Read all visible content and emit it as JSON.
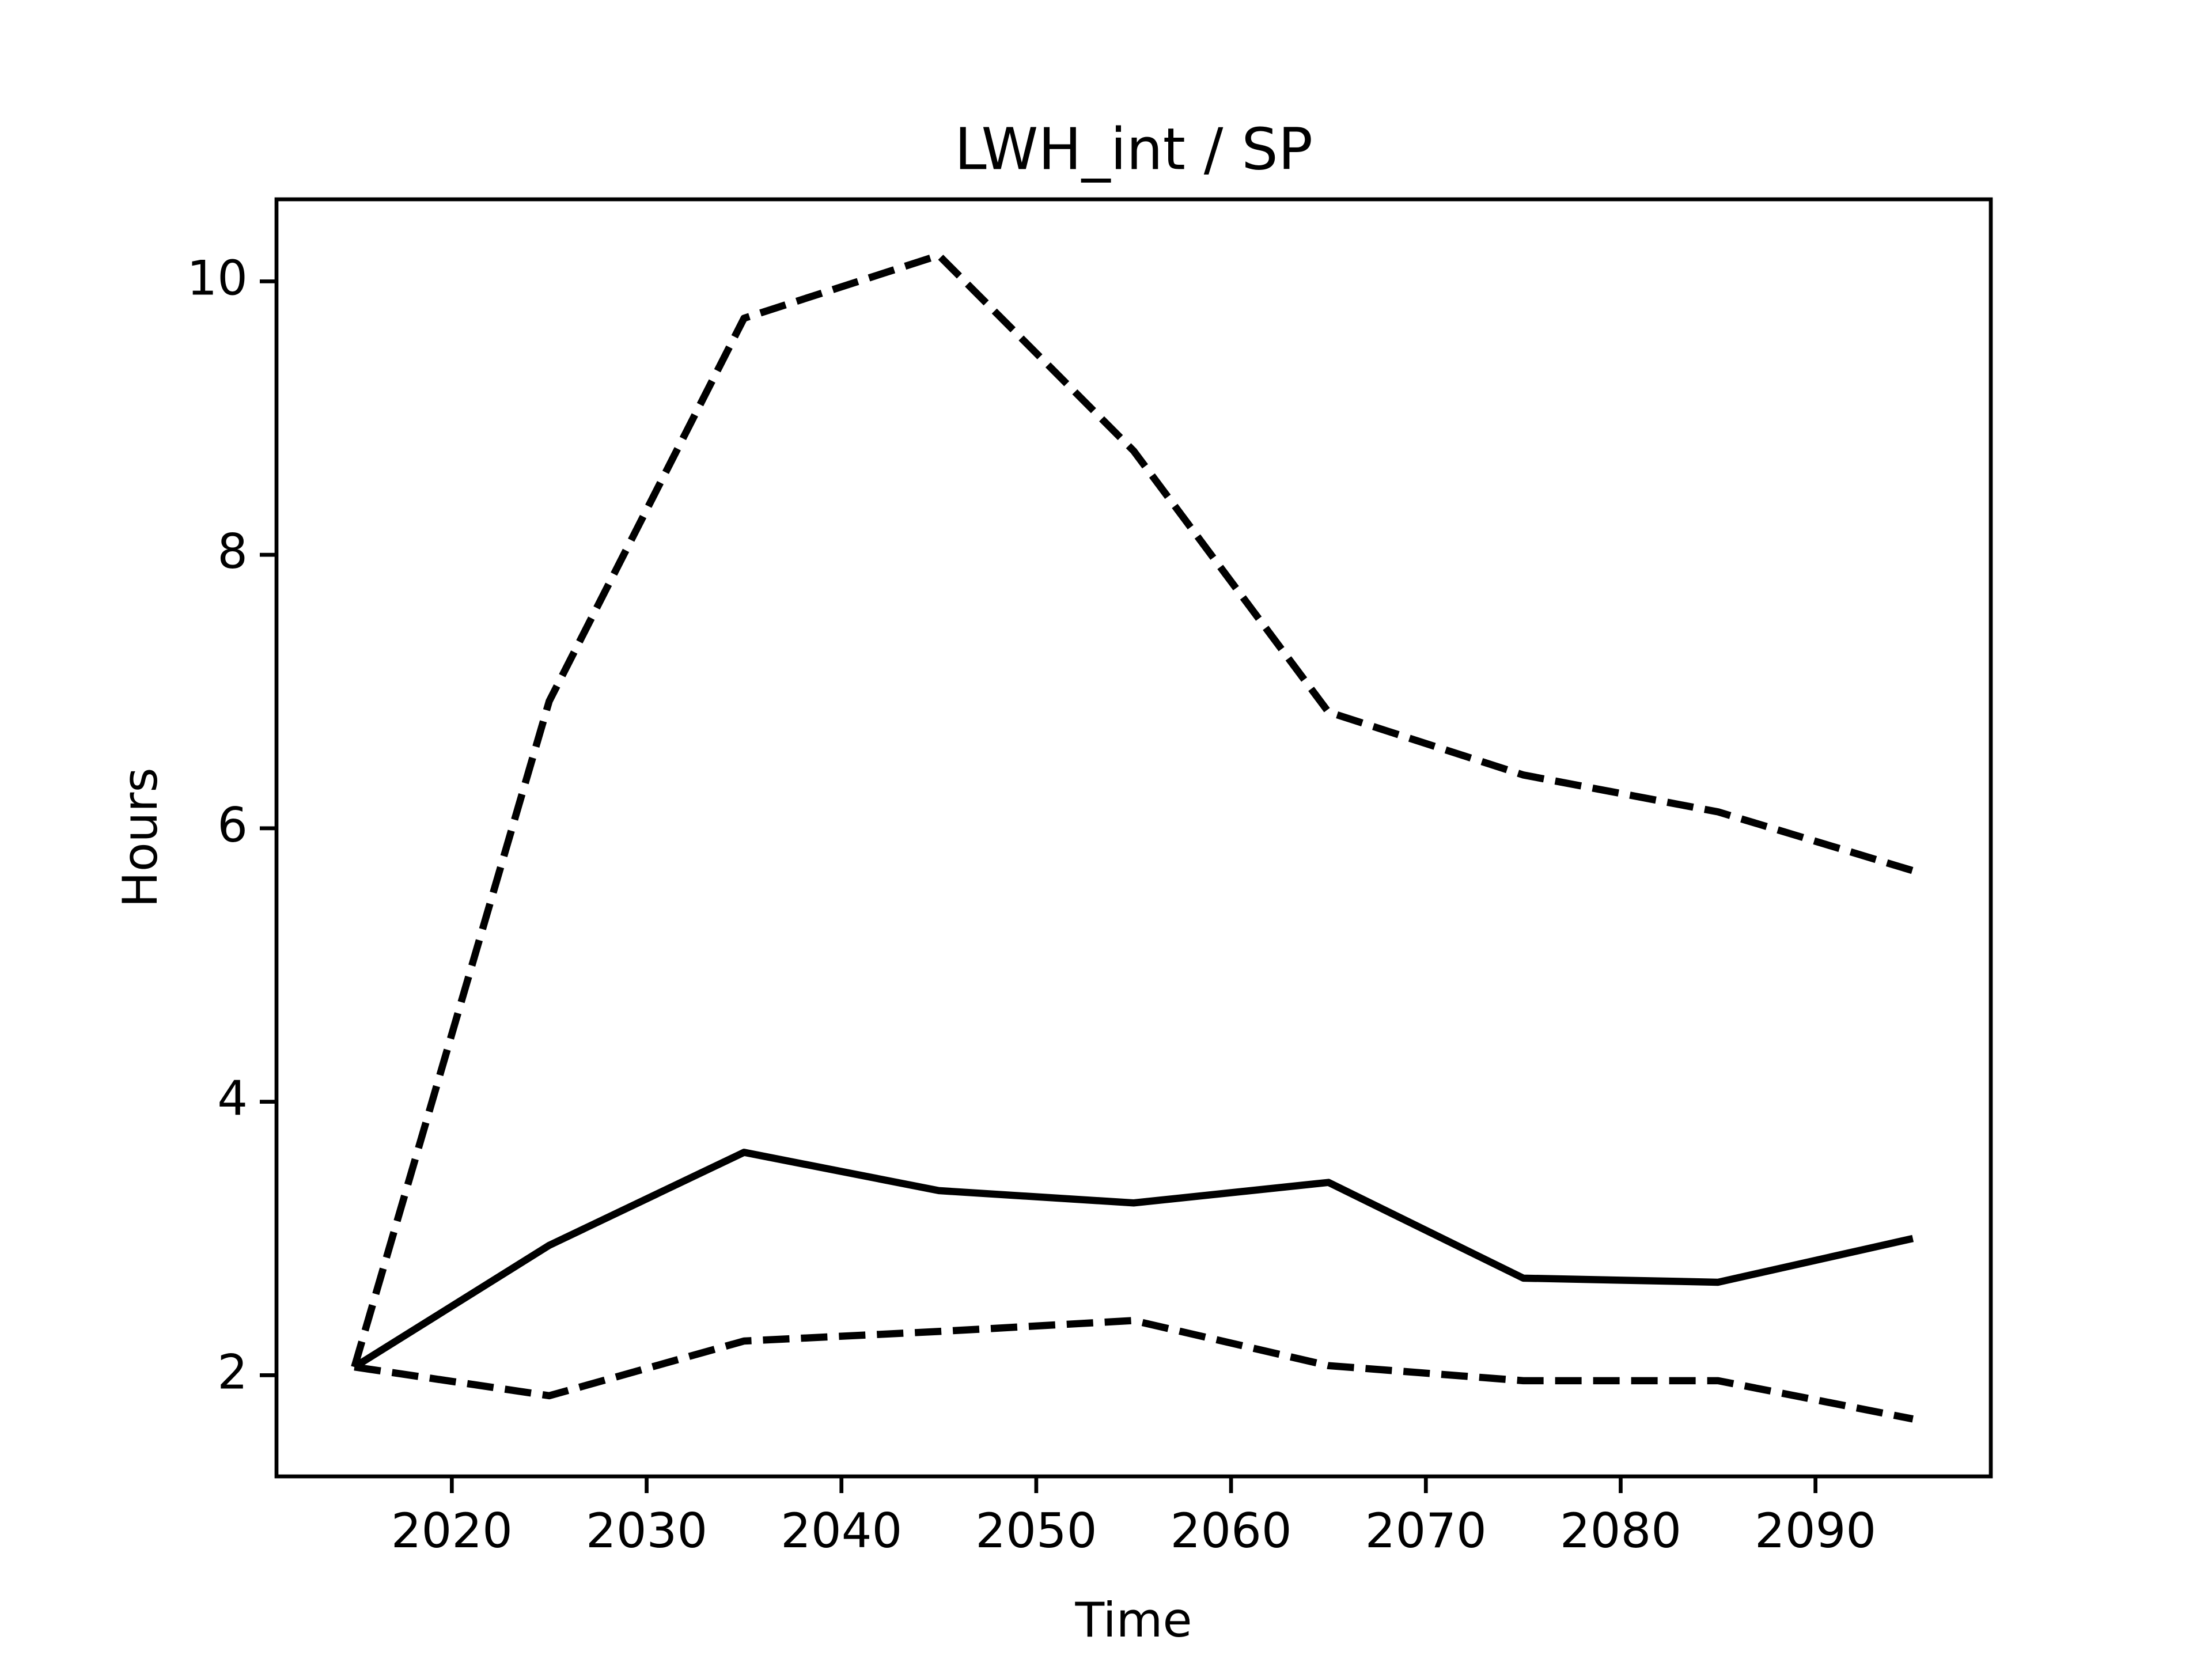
{
  "chart_data": {
    "type": "line",
    "title": "LWH_int / SP",
    "xlabel": "Time",
    "ylabel": "Hours",
    "x": [
      2015,
      2025,
      2035,
      2045,
      2055,
      2065,
      2075,
      2085,
      2095
    ],
    "series": [
      {
        "color": "#000000",
        "dashed": false,
        "values": [
          2.06,
          2.95,
          3.63,
          3.35,
          3.26,
          3.41,
          2.71,
          2.68,
          3.0
        ]
      },
      {
        "color": "#000000",
        "dashed": true,
        "values": [
          2.06,
          6.93,
          9.73,
          10.19,
          8.76,
          6.85,
          6.39,
          6.12,
          5.69
        ]
      },
      {
        "color": "#000000",
        "dashed": true,
        "values": [
          2.06,
          1.85,
          2.25,
          2.32,
          2.4,
          2.07,
          1.96,
          1.96,
          1.68
        ]
      }
    ],
    "xlim": [
      2011,
      2099
    ],
    "ylim": [
      1.26,
      10.6
    ],
    "xticks": [
      2020,
      2030,
      2040,
      2050,
      2060,
      2070,
      2080,
      2090
    ],
    "yticks": [
      2,
      4,
      6,
      8,
      10
    ],
    "grid": false
  }
}
